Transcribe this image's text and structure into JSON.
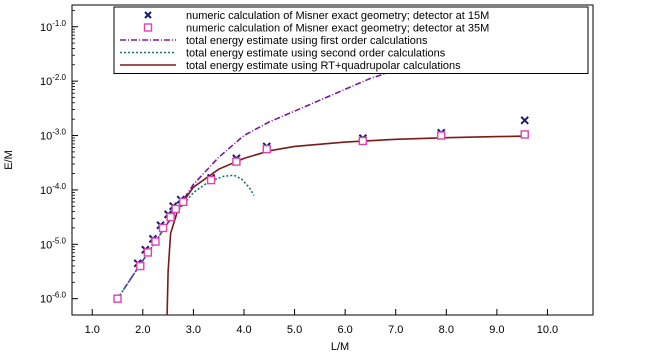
{
  "chart_data": {
    "type": "scatter",
    "xlabel": "L/M",
    "ylabel": "E/M",
    "xlim": [
      0.6,
      10.9
    ],
    "ylim": [
      -6.3,
      -0.6
    ],
    "y_scale": "log10",
    "x_ticks": [
      1.0,
      2.0,
      3.0,
      4.0,
      5.0,
      6.0,
      7.0,
      8.0,
      9.0,
      10.0
    ],
    "x_tick_labels": [
      "1.0",
      "2.0",
      "3.0",
      "4.0",
      "5.0",
      "6.0",
      "7.0",
      "8.0",
      "9.0",
      "10.0"
    ],
    "y_ticks": [
      -6,
      -5,
      -4,
      -3,
      -2,
      -1
    ],
    "y_tick_labels": [
      {
        "base": "10",
        "exp": "-6.0"
      },
      {
        "base": "10",
        "exp": "-5.0"
      },
      {
        "base": "10",
        "exp": "-4.0"
      },
      {
        "base": "10",
        "exp": "-3.0"
      },
      {
        "base": "10",
        "exp": "-2.0"
      },
      {
        "base": "10",
        "exp": "-1.0"
      }
    ],
    "grid": false,
    "legend_position": "top",
    "series": [
      {
        "name": "numeric calculation of Misner exact geometry; detector at 15M",
        "kind": "markers",
        "marker": "x",
        "color": "#1a1a6e",
        "x": [
          1.5,
          1.9,
          2.05,
          2.2,
          2.35,
          2.5,
          2.6,
          2.75,
          3.35,
          3.85,
          4.45,
          6.35,
          7.9,
          9.55
        ],
        "log10_y": [
          -6.0,
          -5.35,
          -5.1,
          -4.9,
          -4.65,
          -4.45,
          -4.3,
          -4.18,
          -3.78,
          -3.42,
          -3.2,
          -3.05,
          -2.95,
          -2.72
        ]
      },
      {
        "name": "numeric calculation of Misner exact geometry; detector at 35M",
        "kind": "markers",
        "marker": "square",
        "color": "#e040b0",
        "x": [
          1.5,
          1.95,
          2.1,
          2.25,
          2.4,
          2.55,
          2.65,
          2.8,
          3.35,
          3.85,
          4.45,
          6.35,
          7.9,
          9.55
        ],
        "log10_y": [
          -6.0,
          -5.4,
          -5.15,
          -4.95,
          -4.7,
          -4.5,
          -4.35,
          -4.22,
          -3.82,
          -3.48,
          -3.25,
          -3.1,
          -3.0,
          -2.98
        ]
      },
      {
        "name": "total energy estimate using first order calculations",
        "kind": "line",
        "dash": "dashdot",
        "color": "#7a1a9e",
        "x": [
          1.5,
          2.0,
          2.5,
          3.0,
          3.5,
          4.0,
          4.5,
          5.0,
          5.5,
          6.0,
          6.5,
          7.0,
          7.5,
          8.0,
          8.5,
          9.0,
          9.5
        ],
        "log10_y": [
          -6.0,
          -5.3,
          -4.6,
          -3.9,
          -3.4,
          -3.0,
          -2.75,
          -2.55,
          -2.35,
          -2.15,
          -1.95,
          -1.8,
          -1.62,
          -1.45,
          -1.3,
          -1.15,
          -1.0
        ]
      },
      {
        "name": "total energy estimate using second order calculations",
        "kind": "line",
        "dash": "dotted",
        "color": "#1a7070",
        "x": [
          1.5,
          2.0,
          2.5,
          3.0,
          3.3,
          3.6,
          3.8,
          3.95,
          4.1,
          4.2
        ],
        "log10_y": [
          -6.0,
          -5.3,
          -4.6,
          -4.05,
          -3.85,
          -3.75,
          -3.73,
          -3.8,
          -3.95,
          -4.1
        ]
      },
      {
        "name": "total energy estimate using RT+quadrupolar calculations",
        "kind": "line",
        "dash": "solid",
        "color": "#7a1a1a",
        "x": [
          2.48,
          2.5,
          2.55,
          2.7,
          3.0,
          3.5,
          4.0,
          4.5,
          5.0,
          6.0,
          7.0,
          8.0,
          9.0,
          9.6
        ],
        "log10_y": [
          -6.3,
          -5.5,
          -4.8,
          -4.35,
          -3.95,
          -3.62,
          -3.42,
          -3.28,
          -3.2,
          -3.12,
          -3.07,
          -3.04,
          -3.02,
          -3.01
        ]
      }
    ]
  }
}
